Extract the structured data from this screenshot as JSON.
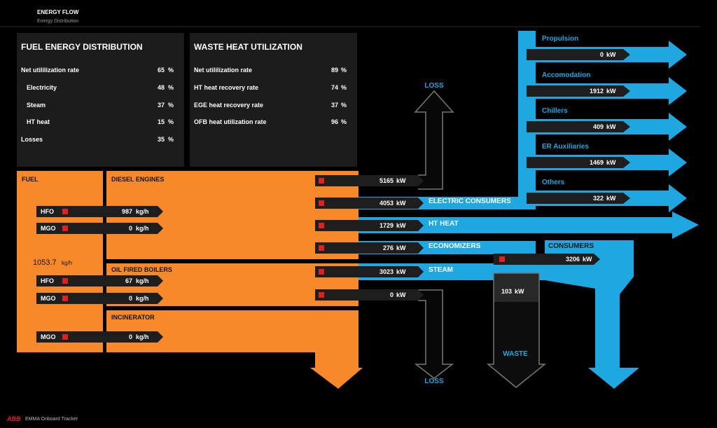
{
  "header": {
    "title": "ENERGY FLOW",
    "subtitle": "Energy Distribution"
  },
  "fuel_distribution": {
    "title": "FUEL ENERGY DISTRIBUTION",
    "rows": [
      {
        "label": "Net utililization rate",
        "value": 65,
        "unit": "%"
      },
      {
        "label": "Electricity",
        "value": 48,
        "unit": "%"
      },
      {
        "label": "Steam",
        "value": 37,
        "unit": "%"
      },
      {
        "label": "HT heat",
        "value": 15,
        "unit": "%"
      },
      {
        "label": "Losses",
        "value": 35,
        "unit": "%"
      }
    ]
  },
  "waste_heat": {
    "title": "WASTE HEAT UTILIZATION",
    "rows": [
      {
        "label": "Net utililization rate",
        "value": 89,
        "unit": "%"
      },
      {
        "label": "HT heat recovery rate",
        "value": 74,
        "unit": "%"
      },
      {
        "label": "EGE heat recovery rate",
        "value": 37,
        "unit": "%"
      },
      {
        "label": "OFB heat utilization rate",
        "value": 96,
        "unit": "%"
      }
    ]
  },
  "fuel": {
    "title": "FUEL",
    "total": 1053.7,
    "unit": "kg/h"
  },
  "sources": [
    {
      "title": "DIESEL ENGINES",
      "inputs": [
        {
          "fuel": "HFO",
          "value": 987,
          "unit": "kg/h"
        },
        {
          "fuel": "MGO",
          "value": 0,
          "unit": "kg/h"
        }
      ]
    },
    {
      "title": "OIL FIRED BOILERS",
      "inputs": [
        {
          "fuel": "HFO",
          "value": 67,
          "unit": "kg/h"
        },
        {
          "fuel": "MGO",
          "value": 0,
          "unit": "kg/h"
        }
      ]
    },
    {
      "title": "INCINERATOR",
      "inputs": [
        {
          "fuel": "MGO",
          "value": 0,
          "unit": "kg/h"
        }
      ]
    }
  ],
  "outputs": [
    {
      "value": 5165,
      "unit": "kW"
    },
    {
      "value": 4053,
      "unit": "kW",
      "label": "ELECTRIC CONSUMERS"
    },
    {
      "value": 1729,
      "unit": "kW",
      "label": "HT HEAT"
    },
    {
      "value": 276,
      "unit": "kW",
      "label": "ECONOMIZERS"
    },
    {
      "value": 3023,
      "unit": "kW",
      "label": "STEAM"
    },
    {
      "value": 0,
      "unit": "kW"
    }
  ],
  "loss_top": {
    "label": "LOSS"
  },
  "loss_bottom": {
    "label": "LOSS"
  },
  "consumers": {
    "label": "CONSUMERS",
    "value": 3206,
    "unit": "kW"
  },
  "waste": {
    "label": "WASTE",
    "value": 103,
    "unit": "kW"
  },
  "electric_consumers": [
    {
      "label": "Propulsion",
      "value": 0,
      "unit": "kW"
    },
    {
      "label": "Accomodation",
      "value": 1912,
      "unit": "kW"
    },
    {
      "label": "Chillers",
      "value": 409,
      "unit": "kW"
    },
    {
      "label": "ER Auxiliaries",
      "value": 1469,
      "unit": "kW"
    },
    {
      "label": "Others",
      "value": 322,
      "unit": "kW"
    }
  ],
  "footer": {
    "logo": "ABB",
    "product": "EMMA Onboard Tracker"
  }
}
